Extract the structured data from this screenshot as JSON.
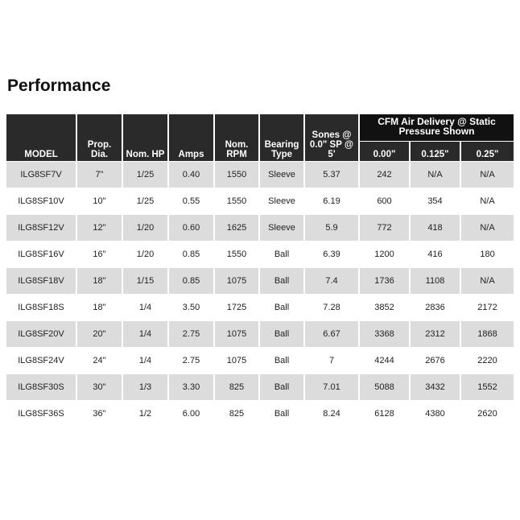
{
  "title": "Performance",
  "table": {
    "group_header": "CFM Air Delivery @ Static Pressure Shown",
    "columns": [
      "MODEL",
      "Prop. Dia.",
      "Nom. HP",
      "Amps",
      "Nom. RPM",
      "Bearing Type",
      "Sones @ 0.0\" SP @ 5'",
      "0.00\"",
      "0.125\"",
      "0.25\""
    ],
    "rows": [
      [
        "ILG8SF7V",
        "7\"",
        "1/25",
        "0.40",
        "1550",
        "Sleeve",
        "5.37",
        "242",
        "N/A",
        "N/A"
      ],
      [
        "ILG8SF10V",
        "10\"",
        "1/25",
        "0.55",
        "1550",
        "Sleeve",
        "6.19",
        "600",
        "354",
        "N/A"
      ],
      [
        "ILG8SF12V",
        "12\"",
        "1/20",
        "0.60",
        "1625",
        "Sleeve",
        "5.9",
        "772",
        "418",
        "N/A"
      ],
      [
        "ILG8SF16V",
        "16\"",
        "1/20",
        "0.85",
        "1550",
        "Ball",
        "6.39",
        "1200",
        "416",
        "180"
      ],
      [
        "ILG8SF18V",
        "18\"",
        "1/15",
        "0.85",
        "1075",
        "Ball",
        "7.4",
        "1736",
        "1108",
        "N/A"
      ],
      [
        "ILG8SF18S",
        "18\"",
        "1/4",
        "3.50",
        "1725",
        "Ball",
        "7.28",
        "3852",
        "2836",
        "2172"
      ],
      [
        "ILG8SF20V",
        "20\"",
        "1/4",
        "2.75",
        "1075",
        "Ball",
        "6.67",
        "3368",
        "2312",
        "1868"
      ],
      [
        "ILG8SF24V",
        "24\"",
        "1/4",
        "2.75",
        "1075",
        "Ball",
        "7",
        "4244",
        "2676",
        "2220"
      ],
      [
        "ILG8SF30S",
        "30\"",
        "1/3",
        "3.30",
        "825",
        "Ball",
        "7.01",
        "5088",
        "3432",
        "1552"
      ],
      [
        "ILG8SF36S",
        "36\"",
        "1/2",
        "6.00",
        "825",
        "Ball",
        "8.24",
        "6128",
        "4380",
        "2620"
      ]
    ]
  }
}
